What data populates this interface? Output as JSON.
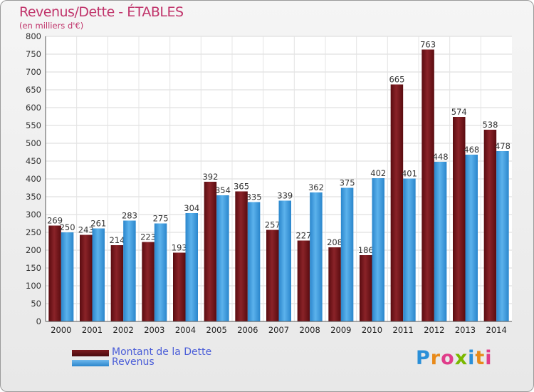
{
  "chart_data": {
    "type": "bar",
    "title": "Revenus/Dette - ÉTABLES",
    "subtitle": "(en milliers d'€)",
    "categories": [
      "2000",
      "2001",
      "2002",
      "2003",
      "2004",
      "2005",
      "2006",
      "2007",
      "2008",
      "2009",
      "2010",
      "2011",
      "2012",
      "2013",
      "2014"
    ],
    "series": [
      {
        "name": "Montant de la Dette",
        "color": "#7a1a1e",
        "values": [
          269,
          243,
          214,
          223,
          193,
          392,
          365,
          257,
          227,
          208,
          186,
          665,
          763,
          574,
          538
        ]
      },
      {
        "name": "Revenus",
        "color": "#3a9de0",
        "values": [
          250,
          261,
          283,
          275,
          304,
          354,
          335,
          339,
          362,
          375,
          402,
          401,
          448,
          468,
          478
        ]
      }
    ],
    "ylim": [
      0,
      800
    ],
    "yticks": [
      0,
      50,
      100,
      150,
      200,
      250,
      300,
      350,
      400,
      450,
      500,
      550,
      600,
      650,
      700,
      750,
      800
    ],
    "grid": true,
    "legend_position": "bottom-left"
  },
  "logo": {
    "letters": [
      "P",
      "r",
      "o",
      "x",
      "i",
      "t",
      "i"
    ],
    "colors": [
      "#2a8fd8",
      "#e88a1a",
      "#e03c8a",
      "#7ab800",
      "#2a8fd8",
      "#e88a1a",
      "#e03c8a"
    ]
  }
}
